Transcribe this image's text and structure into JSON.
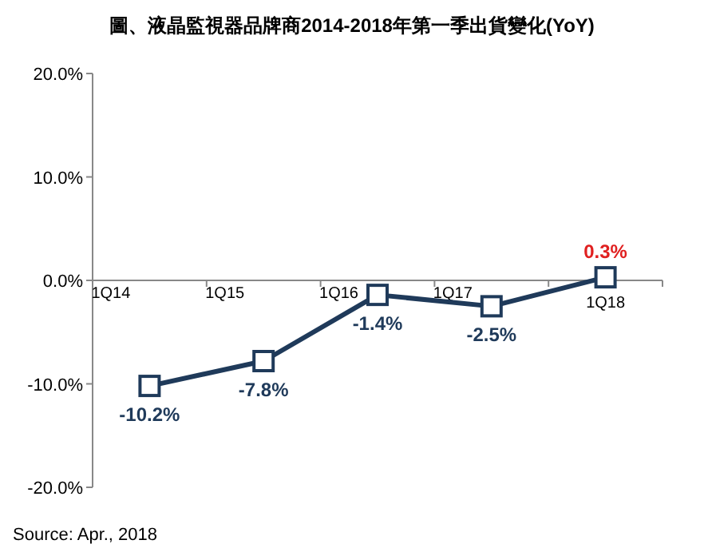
{
  "chart_data": {
    "type": "line",
    "title": "圖、液晶監視器品牌商2014-2018年第一季出貨變化(YoY)",
    "categories": [
      "1Q14",
      "1Q15",
      "1Q16",
      "1Q17",
      "1Q18"
    ],
    "series": [
      {
        "color": "#1f3a5a",
        "values": [
          -10.2,
          -7.8,
          -1.4,
          -2.5,
          0.3
        ],
        "value_labels": [
          "-10.2%",
          "-7.8%",
          "-1.4%",
          "-2.5%",
          "0.3%"
        ]
      }
    ],
    "ylim": [
      -20,
      20
    ],
    "yticks": [
      {
        "value": -20,
        "label": "-20.0%"
      },
      {
        "value": -10,
        "label": "-10.0%"
      },
      {
        "value": 0,
        "label": "0.0%"
      },
      {
        "value": 10,
        "label": "10.0%"
      },
      {
        "value": 20,
        "label": "20.0%"
      }
    ],
    "marker": "square",
    "line_style": "solid",
    "grid": false,
    "annotations": [
      "Source: Apr., 2018"
    ]
  }
}
